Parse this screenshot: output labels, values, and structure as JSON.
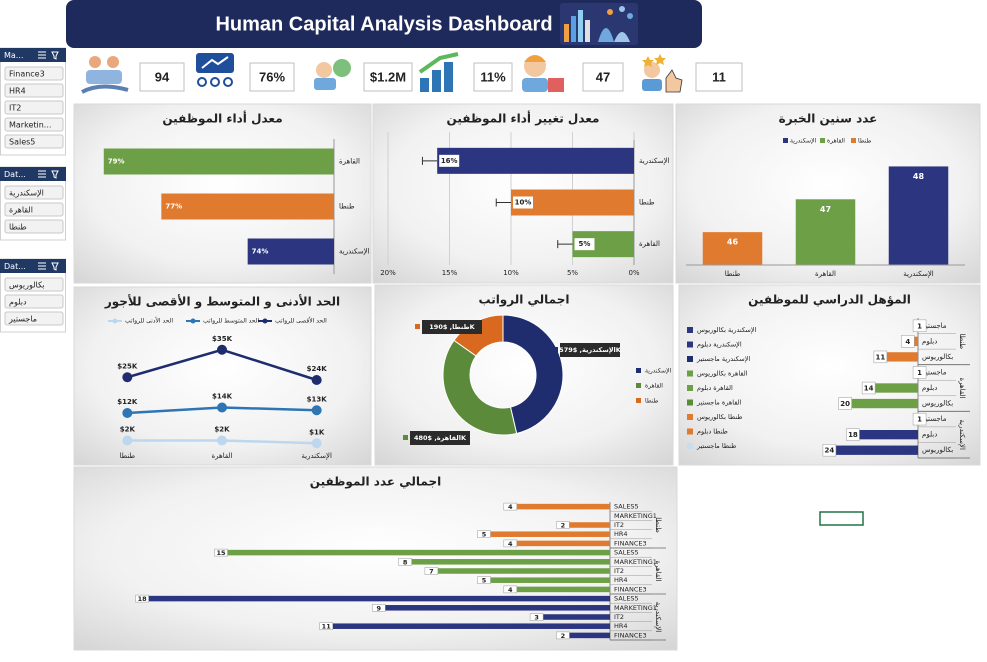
{
  "header": {
    "title": "Human Capital Analysis Dashboard"
  },
  "slicers": [
    {
      "title": "Ma...",
      "items": [
        "Finance3",
        "HR4",
        "IT2",
        "Marketin...",
        "Sales5"
      ]
    },
    {
      "title": "Dat...",
      "items": [
        "الإسكندرية",
        "القاهرة",
        "طنطا"
      ]
    },
    {
      "title": "Dat...",
      "items": [
        "بكالوريوس",
        "دبلوم",
        "ماجستير"
      ]
    }
  ],
  "kpis": [
    "94",
    "76%",
    "$1.2M",
    "11%",
    "47",
    "11"
  ],
  "chart_data": [
    {
      "type": "bar",
      "orientation": "horizontal",
      "title": "معدل أداء الموظفين",
      "categories": [
        "القاهرة",
        "طنطا",
        "الإسكندرية"
      ],
      "values": [
        79,
        77,
        74
      ],
      "value_labels": [
        "79%",
        "77%",
        "74%"
      ],
      "colors": [
        "#6d9f46",
        "#e07a2e",
        "#2b3580"
      ],
      "xlim": [
        71,
        80
      ],
      "x_reversed": true
    },
    {
      "type": "bar",
      "orientation": "horizontal",
      "title": "معدل تغيير أداء الموظفين",
      "categories": [
        "الإسكندرية",
        "طنطا",
        "القاهرة"
      ],
      "values": [
        16,
        10,
        5
      ],
      "value_labels": [
        "16%",
        "10%",
        "5%"
      ],
      "errors": [
        1.2,
        1.2,
        1.2
      ],
      "colors": [
        "#2b3580",
        "#e07a2e",
        "#6d9f46"
      ],
      "xlim": [
        0,
        20
      ],
      "xticks": [
        {
          "value": 20,
          "label": "20%"
        },
        {
          "value": 15,
          "label": "15%"
        },
        {
          "value": 10,
          "label": "10%"
        },
        {
          "value": 5,
          "label": "5%"
        },
        {
          "value": 0,
          "label": "0%"
        }
      ],
      "x_reversed": true,
      "grid": true
    },
    {
      "type": "bar",
      "orientation": "vertical",
      "title": "عدد سنين الخبرة",
      "categories": [
        "طنطا",
        "القاهرة",
        "الإسكندرية"
      ],
      "values": [
        46,
        47,
        48
      ],
      "colors": [
        "#e07a2e",
        "#6d9f46",
        "#2b3580"
      ],
      "ylim": [
        45,
        48.5
      ],
      "legend": [
        {
          "name": "الإسكندرية",
          "color": "#2b3580"
        },
        {
          "name": "القاهرة",
          "color": "#6d9f46"
        },
        {
          "name": "طنطا",
          "color": "#e07a2e"
        }
      ]
    },
    {
      "type": "line",
      "title": "الحد الأدنى و المتوسط و الأقصى للأجور",
      "categories": [
        "طنطا",
        "القاهرة",
        "الإسكندرية"
      ],
      "ylim": [
        0,
        40000
      ],
      "series": [
        {
          "name": "الحد الأقصى للرواتب",
          "color": "#1f2d6e",
          "values": [
            25000,
            35000,
            24000
          ],
          "value_labels": [
            "$25K",
            "$35K",
            "$24K"
          ]
        },
        {
          "name": "الحد المتوسط للرواتب",
          "color": "#2e75b6",
          "values": [
            12000,
            14000,
            13000
          ],
          "value_labels": [
            "$12K",
            "$14K",
            "$13K"
          ]
        },
        {
          "name": "الحد الأدنى للرواتب",
          "color": "#bdd7ee",
          "values": [
            2000,
            2000,
            1000
          ],
          "value_labels": [
            "$2K",
            "$2K",
            "$1K"
          ]
        }
      ]
    },
    {
      "type": "pie",
      "donut": true,
      "title": "اجمالي الرواتب",
      "categories": [
        "الإسكندرية",
        "القاهرة",
        "طنطا"
      ],
      "values": [
        579000,
        480000,
        190000
      ],
      "value_labels": [
        "الإسكندرية, $579K",
        "القاهرة, $480K",
        "طنطا, $190K"
      ],
      "colors": [
        "#1f2d6e",
        "#5b8a3a",
        "#d9691e"
      ]
    },
    {
      "type": "bar",
      "orientation": "horizontal",
      "title": "المؤهل الدراسي للموظفين",
      "xlim": [
        0,
        25
      ],
      "x_reversed": true,
      "groups": [
        {
          "name": "طنطا",
          "color": "#e07a2e",
          "categories": [
            "ماجستير",
            "دبلوم",
            "بكالوريوس"
          ],
          "values": [
            1,
            4,
            11
          ]
        },
        {
          "name": "القاهرة",
          "color": "#6d9f46",
          "categories": [
            "ماجستير",
            "دبلوم",
            "بكالوريوس"
          ],
          "values": [
            1,
            14,
            20
          ]
        },
        {
          "name": "الإسكندرية",
          "color": "#2b3580",
          "categories": [
            "ماجستير",
            "دبلوم",
            "بكالوريوس"
          ],
          "values": [
            1,
            18,
            24
          ]
        }
      ],
      "legend": [
        {
          "name": "الإسكندرية بكالوريوس",
          "color": "#2b3580"
        },
        {
          "name": "الإسكندرية دبلوم",
          "color": "#2b3580"
        },
        {
          "name": "الإسكندرية ماجستير",
          "color": "#1f2d6e"
        },
        {
          "name": "القاهرة بكالوريوس",
          "color": "#6d9f46"
        },
        {
          "name": "القاهرة دبلوم",
          "color": "#6d9f46"
        },
        {
          "name": "القاهرة ماجستير",
          "color": "#5b8a3a"
        },
        {
          "name": "طنطا بكالوريوس",
          "color": "#e07a2e"
        },
        {
          "name": "طنطا دبلوم",
          "color": "#e07a2e"
        },
        {
          "name": "طنطا ماجستير",
          "color": "#c9dcf0"
        }
      ]
    },
    {
      "type": "bar",
      "orientation": "horizontal",
      "title": "اجمالي عدد الموظفين",
      "xlim": [
        0,
        20
      ],
      "x_reversed": true,
      "groups": [
        {
          "name": "طنطا",
          "color": "#e07a2e",
          "categories": [
            "SALES5",
            "MARKETING1",
            "IT2",
            "HR4",
            "FINANCE3"
          ],
          "values": [
            4,
            null,
            2,
            5,
            4
          ]
        },
        {
          "name": "القاهرة",
          "color": "#6d9f46",
          "categories": [
            "SALES5",
            "MARKETING1",
            "IT2",
            "HR4",
            "FINANCE3"
          ],
          "values": [
            15,
            8,
            7,
            5,
            4
          ]
        },
        {
          "name": "الإسكندرية",
          "color": "#2b3580",
          "categories": [
            "SALES5",
            "MARKETING1",
            "IT2",
            "HR4",
            "FINANCE3"
          ],
          "values": [
            18,
            9,
            3,
            11,
            2
          ]
        }
      ]
    }
  ]
}
